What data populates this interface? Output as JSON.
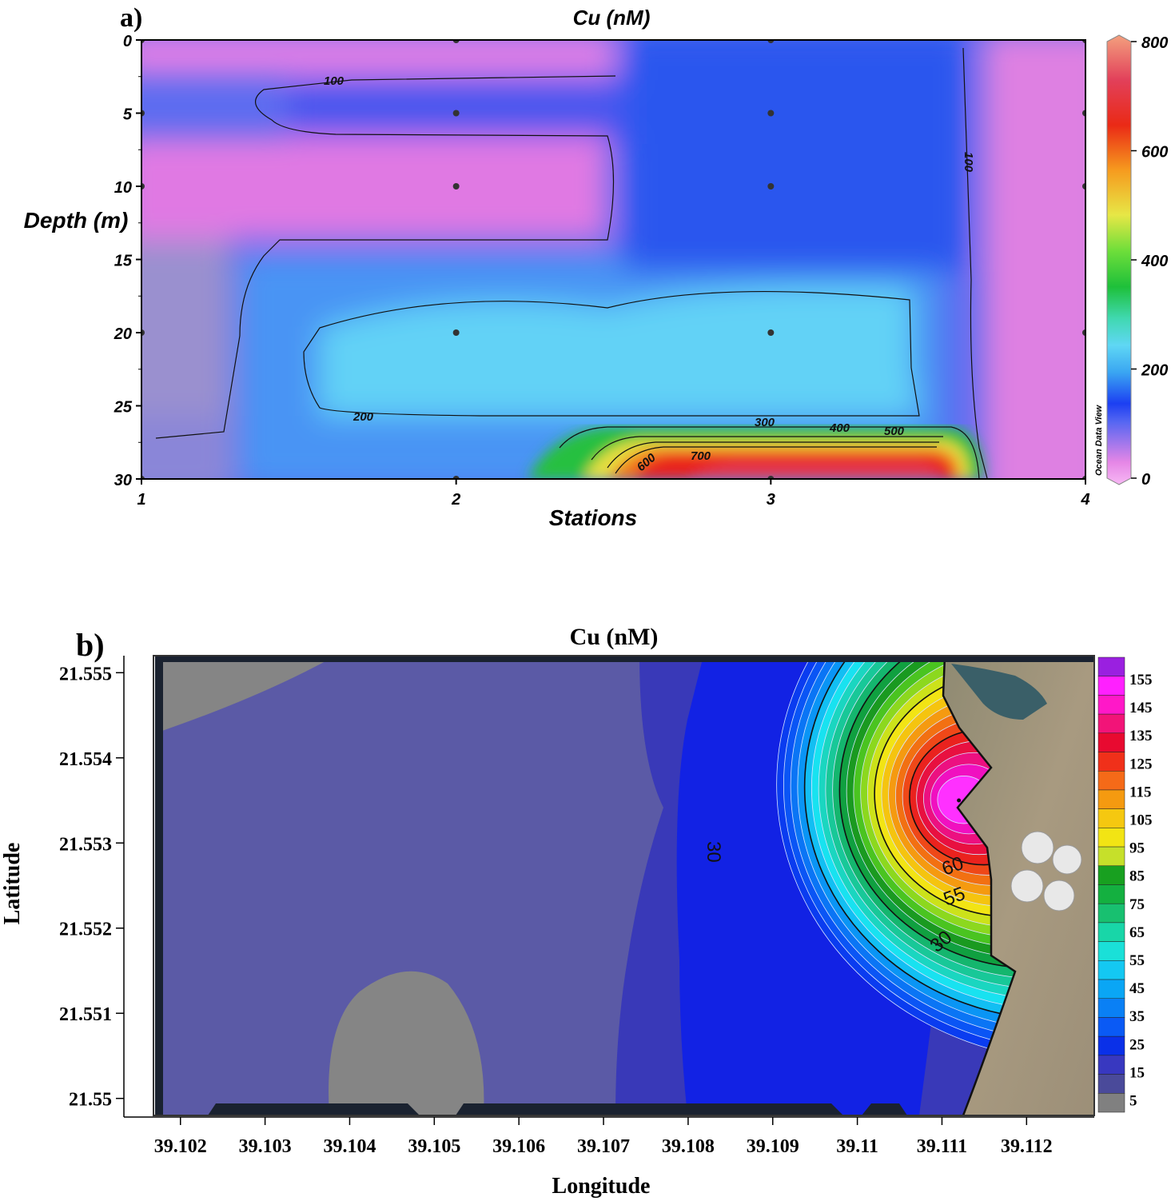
{
  "panel_a": {
    "label": "a)",
    "title": "Cu (nM)",
    "xlabel": "Stations",
    "ylabel": "Depth (m)",
    "watermark": "Ocean Data View",
    "x_ticks": [
      "1",
      "2",
      "3",
      "4"
    ],
    "y_ticks": [
      "0",
      "5",
      "10",
      "15",
      "20",
      "25",
      "30"
    ],
    "colorbar_ticks": [
      "0",
      "200",
      "400",
      "600",
      "800"
    ],
    "contour_labels": [
      "100",
      "100",
      "200",
      "300",
      "400",
      "500",
      "600",
      "700"
    ]
  },
  "panel_b": {
    "label": "b)",
    "title": "Cu (nM)",
    "xlabel": "Longitude",
    "ylabel": "Latitude",
    "x_ticks": [
      "39.102",
      "39.103",
      "39.104",
      "39.105",
      "39.106",
      "39.107",
      "39.108",
      "39.109",
      "39.11",
      "39.111",
      "39.112"
    ],
    "y_ticks": [
      "21.555",
      "21.554",
      "21.553",
      "21.552",
      "21.551",
      "21.55"
    ],
    "legend_labels": [
      "155",
      "145",
      "135",
      "125",
      "115",
      "105",
      "95",
      "85",
      "75",
      "65",
      "55",
      "45",
      "35",
      "25",
      "15",
      "5"
    ],
    "contour_labels": [
      "30",
      "60",
      "55",
      "30"
    ]
  },
  "chart_data": [
    {
      "type": "heatmap",
      "title": "Cu (nM)",
      "xlabel": "Stations",
      "ylabel": "Depth (m)",
      "x": [
        1,
        2,
        3,
        4
      ],
      "y": [
        0,
        5,
        10,
        20,
        30
      ],
      "xlim": [
        1,
        4
      ],
      "ylim": [
        30,
        0
      ],
      "clim": [
        0,
        800
      ],
      "values_nM": [
        [
          40,
          110,
          110,
          30
        ],
        [
          40,
          110,
          120,
          40
        ],
        [
          30,
          40,
          150,
          40
        ],
        [
          100,
          220,
          220,
          60
        ],
        [
          100,
          130,
          720,
          40
        ]
      ]
    },
    {
      "type": "heatmap",
      "title": "Cu (nM)",
      "xlabel": "Longitude",
      "ylabel": "Latitude",
      "xlim": [
        39.1017,
        39.1128
      ],
      "ylim": [
        21.5498,
        21.5552
      ],
      "clim": [
        0,
        160
      ],
      "max_value_location": {
        "lon": 39.1112,
        "lat": 21.5535,
        "value": 160
      },
      "contour_levels": [
        5,
        10,
        15,
        20,
        25,
        30,
        35,
        40,
        45,
        50,
        55,
        60,
        65,
        70,
        75,
        80,
        85,
        90,
        95,
        100,
        105,
        110,
        115,
        120,
        125,
        130,
        135,
        140,
        145,
        150,
        155
      ]
    }
  ]
}
